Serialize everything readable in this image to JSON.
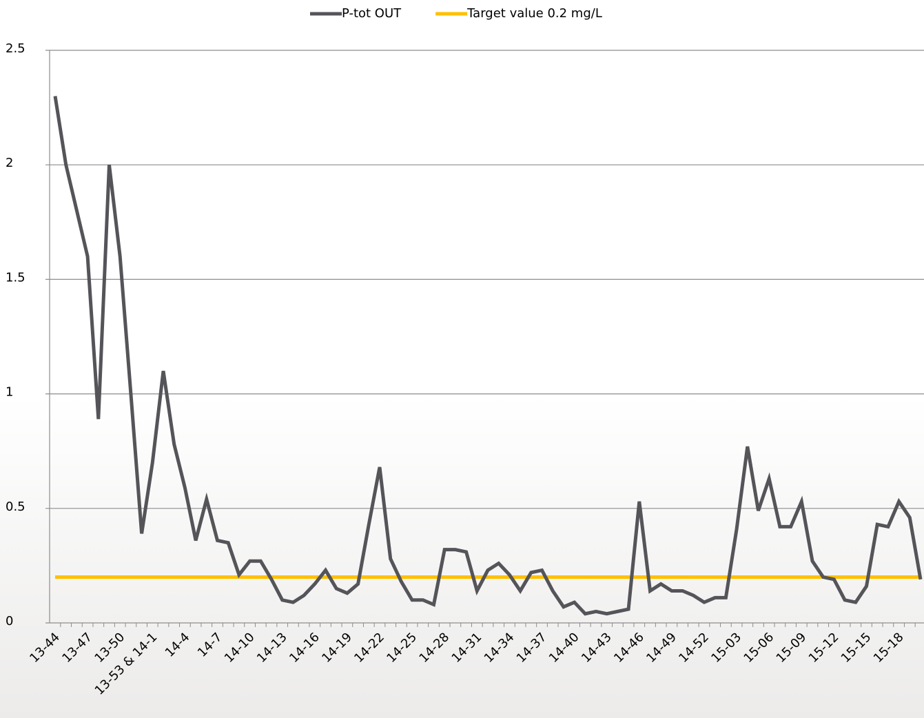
{
  "chart_data": {
    "type": "line",
    "categories": [
      "13-44",
      null,
      null,
      "13-47",
      null,
      null,
      "13-50",
      null,
      null,
      "13-53 & 14-1",
      null,
      null,
      "14-4",
      null,
      null,
      "14-7",
      null,
      null,
      "14-10",
      null,
      null,
      "14-13",
      null,
      null,
      "14-16",
      null,
      null,
      "14-19",
      null,
      null,
      "14-22",
      null,
      null,
      "14-25",
      null,
      null,
      "14-28",
      null,
      null,
      "14-31",
      null,
      null,
      "14-34",
      null,
      null,
      "14-37",
      null,
      null,
      "14-40",
      null,
      null,
      "14-43",
      null,
      null,
      "14-46",
      null,
      null,
      "14-49",
      null,
      null,
      "14-52",
      null,
      null,
      "15-03",
      null,
      null,
      "15-06",
      null,
      null,
      "15-09",
      null,
      null,
      "15-12",
      null,
      null,
      "15-15",
      null,
      null,
      "15-18",
      null,
      null
    ],
    "series": [
      {
        "name": "P-tot OUT",
        "color": "#545459",
        "values": [
          2.3,
          2.0,
          1.8,
          1.6,
          0.89,
          2.0,
          1.6,
          1.0,
          0.39,
          0.7,
          1.1,
          0.78,
          0.59,
          0.36,
          0.54,
          0.36,
          0.35,
          0.21,
          0.27,
          0.27,
          0.19,
          0.1,
          0.09,
          0.12,
          0.17,
          0.23,
          0.15,
          0.13,
          0.17,
          0.43,
          0.68,
          0.28,
          0.18,
          0.1,
          0.1,
          0.08,
          0.32,
          0.32,
          0.31,
          0.14,
          0.23,
          0.26,
          0.21,
          0.14,
          0.22,
          0.23,
          0.14,
          0.07,
          0.09,
          0.04,
          0.05,
          0.04,
          0.05,
          0.06,
          0.53,
          0.14,
          0.17,
          0.14,
          0.14,
          0.12,
          0.09,
          0.11,
          0.11,
          0.41,
          0.77,
          0.49,
          0.63,
          0.42,
          0.42,
          0.53,
          0.27,
          0.2,
          0.19,
          0.1,
          0.09,
          0.16,
          0.43,
          0.42,
          0.53,
          0.46,
          0.19
        ]
      },
      {
        "name": "Target value 0.2 mg/L",
        "color": "#ffc000",
        "values": [
          0.2,
          0.2,
          0.2,
          0.2,
          0.2,
          0.2,
          0.2,
          0.2,
          0.2,
          0.2,
          0.2,
          0.2,
          0.2,
          0.2,
          0.2,
          0.2,
          0.2,
          0.2,
          0.2,
          0.2,
          0.2,
          0.2,
          0.2,
          0.2,
          0.2,
          0.2,
          0.2,
          0.2,
          0.2,
          0.2,
          0.2,
          0.2,
          0.2,
          0.2,
          0.2,
          0.2,
          0.2,
          0.2,
          0.2,
          0.2,
          0.2,
          0.2,
          0.2,
          0.2,
          0.2,
          0.2,
          0.2,
          0.2,
          0.2,
          0.2,
          0.2,
          0.2,
          0.2,
          0.2,
          0.2,
          0.2,
          0.2,
          0.2,
          0.2,
          0.2,
          0.2,
          0.2,
          0.2,
          0.2,
          0.2,
          0.2,
          0.2,
          0.2,
          0.2,
          0.2,
          0.2,
          0.2,
          0.2,
          0.2,
          0.2,
          0.2,
          0.2,
          0.2,
          0.2,
          0.2,
          0.2
        ]
      }
    ],
    "ylim": [
      0,
      2.5
    ],
    "yticks": [
      0,
      0.5,
      1,
      1.5,
      2,
      {
        "value": 2.5,
        "label": "2.5"
      }
    ],
    "grid": true,
    "legend": "top"
  }
}
